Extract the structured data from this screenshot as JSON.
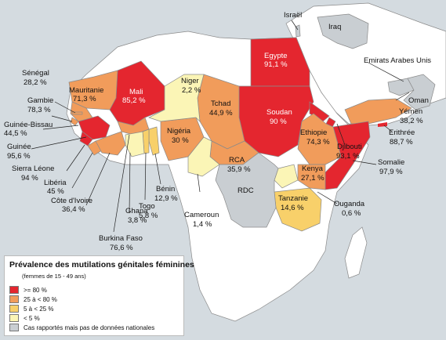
{
  "colors": {
    "sea": "#d4dbe0",
    "land_other": "#ffffff",
    "high": "#e4262f",
    "mid": "#f19c5b",
    "low": "#f8d06a",
    "vlow": "#fbf5b6",
    "reported": "#c9ced2",
    "border": "#8a8a8a"
  },
  "countries": {
    "egypt": {
      "name": "Egypte",
      "value": "91,1 %"
    },
    "soudan": {
      "name": "Soudan",
      "value": "90 %"
    },
    "mali": {
      "name": "Mali",
      "value": "85,2 %"
    },
    "mauritanie": {
      "name": "Mauritanie",
      "value": "71,3 %"
    },
    "niger": {
      "name": "Niger",
      "value": "2,2 %"
    },
    "tchad": {
      "name": "Tchad",
      "value": "44,9 %"
    },
    "nigeria": {
      "name": "Nigéria",
      "value": "30 %"
    },
    "rca": {
      "name": "RCA",
      "value": "35,9 %"
    },
    "ethiopie": {
      "name": "Ethiopie",
      "value": "74,3 %"
    },
    "senegal": {
      "name": "Sénégal",
      "value": "28,2 %"
    },
    "gambie": {
      "name": "Gambie",
      "value": "78,3 %"
    },
    "guinee_bissau": {
      "name": "Guinée-Bissau",
      "value": "44,5 %"
    },
    "guinee": {
      "name": "Guinée",
      "value": "95,6 %"
    },
    "sierra_leone": {
      "name": "Sierra Léone",
      "value": "94 %"
    },
    "liberia": {
      "name": "Libéria",
      "value": "45 %"
    },
    "cote_ivoire": {
      "name": "Côte d'Ivoire",
      "value": "36,4 %"
    },
    "burkina": {
      "name": "Burkina Faso",
      "value": "76,6 %"
    },
    "ghana": {
      "name": "Ghana",
      "value": "3,8 %"
    },
    "togo": {
      "name": "Togo",
      "value": "5,8 %"
    },
    "benin": {
      "name": "Bénin",
      "value": "12,9 %"
    },
    "cameroun": {
      "name": "Cameroun",
      "value": "1,4 %"
    },
    "yemen": {
      "name": "Yémen",
      "value": "38,2 %"
    },
    "erythree": {
      "name": "Erithrée",
      "value": "88,7 %"
    },
    "djibouti": {
      "name": "Djibouti",
      "value": "93,1 %"
    },
    "somalie": {
      "name": "Somalie",
      "value": "97,9 %"
    },
    "kenya": {
      "name": "Kenya",
      "value": "27,1 %"
    },
    "tanzanie": {
      "name": "Tanzanie",
      "value": "14,6 %"
    },
    "ouganda": {
      "name": "Ouganda",
      "value": "0,6 %"
    },
    "rdc": {
      "name": "RDC"
    },
    "israel": {
      "name": "Israël"
    },
    "iraq": {
      "name": "Iraq"
    },
    "eau": {
      "name": "Emirats Arabes Unis"
    },
    "oman": {
      "name": "Oman"
    }
  },
  "legend": {
    "title": "Prévalence des mutilations génitales féminines",
    "subtitle": "(femmes de 15 - 49 ans)",
    "items": [
      {
        "label": ">= 80 %"
      },
      {
        "label": "25  à < 80 %"
      },
      {
        "label": "5  à < 25 %"
      },
      {
        "label": "< 5 %"
      },
      {
        "label": "Cas rapportés mais pas de données nationales"
      }
    ]
  }
}
